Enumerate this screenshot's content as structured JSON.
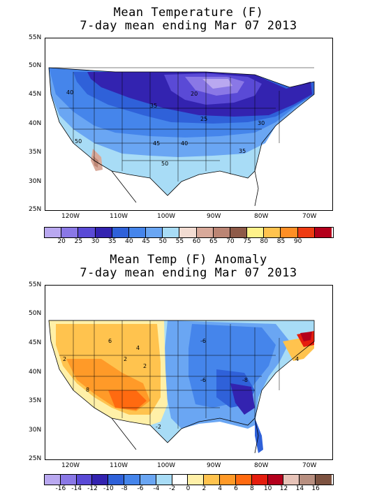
{
  "panel1": {
    "title_line1": "Mean Temperature (F)",
    "title_line2": "7-day mean ending Mar 07 2013",
    "lat_labels": [
      "55N",
      "50N",
      "45N",
      "40N",
      "35N",
      "30N",
      "25N"
    ],
    "lon_labels": [
      "120W",
      "110W",
      "100W",
      "90W",
      "80W",
      "70W"
    ],
    "contour_labels": [
      "40",
      "20",
      "35",
      "25",
      "30",
      "50",
      "45",
      "40",
      "35",
      "50"
    ],
    "colorbar_colors": [
      "#b9a8f0",
      "#8a78e6",
      "#5a4ad6",
      "#3323b0",
      "#2f61d9",
      "#4585eb",
      "#6aa6f3",
      "#a8dcf6",
      "#f2dcd2",
      "#d8a99a",
      "#bb8574",
      "#8e5a48",
      "#fff28a",
      "#ffc34e",
      "#ff8f25",
      "#ee3b12",
      "#b4001c"
    ],
    "colorbar_labels": [
      "20",
      "25",
      "30",
      "35",
      "40",
      "45",
      "50",
      "55",
      "60",
      "65",
      "70",
      "75",
      "80",
      "85",
      "90"
    ]
  },
  "panel2": {
    "title_line1": "Mean Temp (F) Anomaly",
    "title_line2": "7-day mean ending Mar 07 2013",
    "lat_labels": [
      "55N",
      "50N",
      "45N",
      "40N",
      "35N",
      "30N",
      "25N"
    ],
    "lon_labels": [
      "120W",
      "110W",
      "100W",
      "90W",
      "80W",
      "70W"
    ],
    "contour_labels": [
      "2",
      "6",
      "4",
      "2",
      "8",
      "2",
      "-6",
      "-6",
      "-8",
      "-2",
      "4"
    ],
    "colorbar_colors": [
      "#b9a8f0",
      "#8a78e6",
      "#5a4ad6",
      "#3323b0",
      "#2f61d9",
      "#4585eb",
      "#6aa6f3",
      "#a8dcf6",
      "#ffffff",
      "#fff0a8",
      "#ffc34e",
      "#ff9a28",
      "#ff6a10",
      "#e51e0e",
      "#b4001c",
      "#e7c3b8",
      "#b88f80",
      "#7d5240"
    ],
    "colorbar_labels": [
      "-16",
      "-14",
      "-12",
      "-10",
      "-8",
      "-6",
      "-4",
      "-2",
      "0",
      "2",
      "4",
      "6",
      "8",
      "10",
      "12",
      "14",
      "16"
    ]
  }
}
